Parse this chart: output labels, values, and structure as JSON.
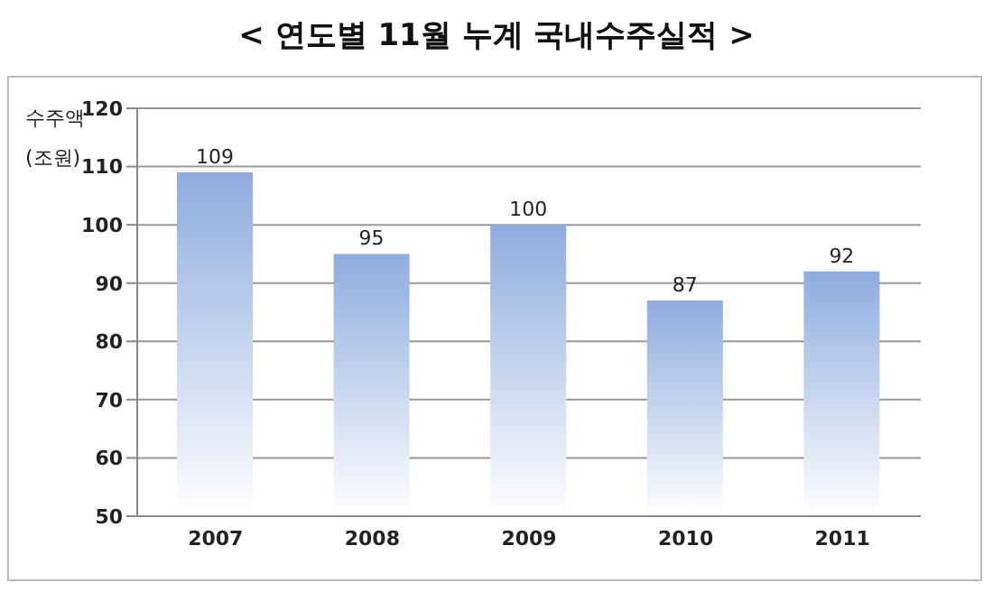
{
  "chart_data": {
    "type": "bar",
    "title": "< 연도별 11월 누계 국내수주실적 >",
    "ylabel": "수주액\n(조원)",
    "categories": [
      "2007",
      "2008",
      "2009",
      "2010",
      "2011"
    ],
    "values": [
      109,
      95,
      100,
      87,
      92
    ],
    "color": "#8eacde",
    "ylim": [
      50,
      120
    ],
    "yticks": [
      50,
      60,
      70,
      80,
      90,
      100,
      110,
      120
    ],
    "grid": "y",
    "data_labels": true
  }
}
